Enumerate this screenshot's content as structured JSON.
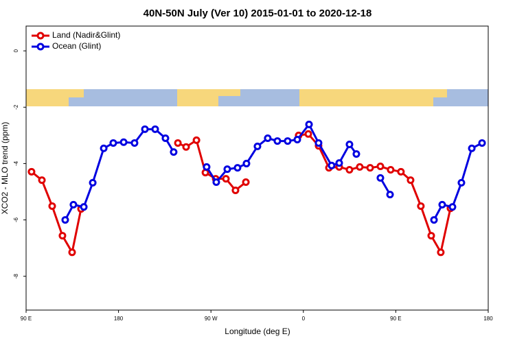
{
  "chart_data": {
    "type": "line",
    "title": "40N-50N July (Ver 10)   2015-01-01 to 2020-12-18",
    "xlabel": "Longitude (deg E)",
    "ylabel": "XCO2 - MLO trend (ppm)",
    "xlim": [
      90,
      540
    ],
    "ylim": [
      -9.2,
      0.88
    ],
    "xticks": [
      {
        "value": 90,
        "label": "90 E"
      },
      180,
      {
        "value": 270,
        "label": "90 W"
      },
      {
        "value": 360,
        "label": "0"
      },
      {
        "value": 450,
        "label": "90 E"
      },
      {
        "value": 540,
        "label": "180"
      }
    ],
    "yticks": [
      0,
      -2,
      -4,
      -6,
      -8
    ],
    "legend": "top-left",
    "series": [
      {
        "name": "Land (Nadir&Glint)",
        "color": "#e00000",
        "x": [
          95.3,
          105.4,
          115.4,
          125.4,
          134.8,
          143.5,
          null,
          237.8,
          245.8,
          255.9,
          264.6,
          274.6,
          284.6,
          293.9,
          304,
          null,
          355.4,
          364.8,
          374.8,
          384.9,
          394.9,
          404.9,
          414.9,
          425,
          435,
          445,
          455,
          464.4,
          474.4,
          484.5,
          493.8,
          503.2
        ],
        "values": [
          -4.29,
          -4.59,
          -5.51,
          -6.56,
          -7.15,
          -5.61,
          null,
          -3.27,
          -3.41,
          -3.17,
          -4.32,
          -4.54,
          -4.54,
          -4.95,
          -4.66,
          null,
          -3.0,
          -2.95,
          -3.37,
          -4.15,
          -4.12,
          -4.22,
          -4.12,
          -4.15,
          -4.1,
          -4.22,
          -4.29,
          -4.59,
          -5.51,
          -6.56,
          -7.15,
          -5.59
        ]
      },
      {
        "name": "Ocean (Glint)",
        "color": "#0000e0",
        "x": [
          128.1,
          136.1,
          146.2,
          154.9,
          165.6,
          174.9,
          185,
          195.6,
          205.7,
          215.7,
          225.7,
          233.7,
          null,
          265.8,
          275.2,
          285.9,
          295.9,
          304.6,
          315.3,
          325.3,
          334.7,
          344.7,
          354.1,
          365.5,
          374.8,
          387.5,
          394.9,
          404.9,
          411.6,
          null,
          435,
          444.4,
          null,
          487.2,
          495.2,
          505.2,
          513.9,
          524,
          534
        ],
        "values": [
          -6.0,
          -5.46,
          -5.54,
          -4.68,
          -3.46,
          -3.27,
          -3.24,
          -3.27,
          -2.78,
          -2.78,
          -3.1,
          -3.59,
          null,
          -4.12,
          -4.66,
          -4.2,
          -4.15,
          -4.0,
          -3.39,
          -3.1,
          -3.2,
          -3.2,
          -3.15,
          -2.61,
          -3.27,
          -4.07,
          -3.98,
          -3.32,
          -3.66,
          null,
          -4.51,
          -5.1,
          null,
          -6.0,
          -5.46,
          -5.54,
          -4.68,
          -3.46,
          -3.27
        ]
      }
    ]
  }
}
